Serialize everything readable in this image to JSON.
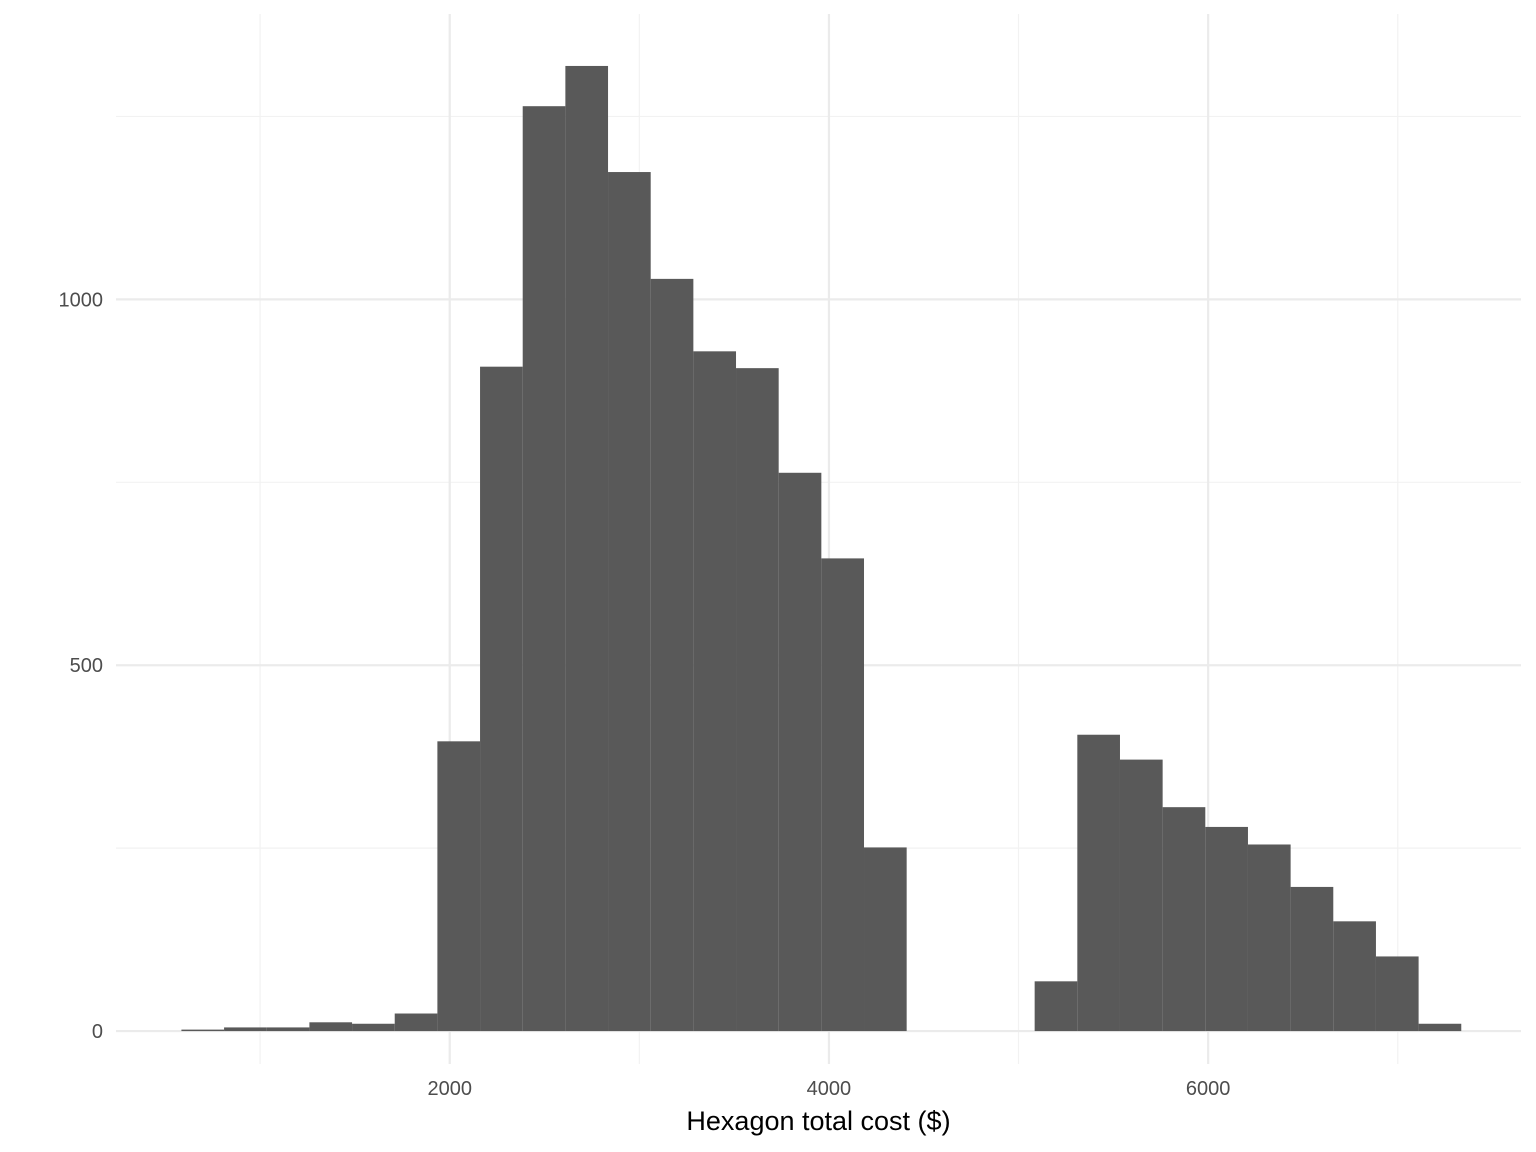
{
  "chart_data": {
    "type": "bar",
    "title": "",
    "xlabel": "Hexagon total cost ($)",
    "ylabel": "",
    "xlim": [
      240,
      7650
    ],
    "ylim": [
      -45,
      1390
    ],
    "x_ticks": [
      2000,
      4000,
      6000
    ],
    "x_minor_ticks": [
      1000,
      3000,
      5000,
      7000
    ],
    "y_ticks": [
      0,
      500,
      1000
    ],
    "y_minor_ticks": [
      250,
      750,
      1250
    ],
    "grid": true,
    "bar_color": "#595959",
    "bins": [
      {
        "x0": 585,
        "x1": 810,
        "count": 2
      },
      {
        "x0": 810,
        "x1": 1035,
        "count": 5
      },
      {
        "x0": 1035,
        "x1": 1260,
        "count": 5
      },
      {
        "x0": 1260,
        "x1": 1485,
        "count": 12
      },
      {
        "x0": 1485,
        "x1": 1710,
        "count": 10
      },
      {
        "x0": 1710,
        "x1": 1935,
        "count": 24
      },
      {
        "x0": 1935,
        "x1": 2160,
        "count": 396
      },
      {
        "x0": 2160,
        "x1": 2385,
        "count": 908
      },
      {
        "x0": 2385,
        "x1": 2610,
        "count": 1264
      },
      {
        "x0": 2610,
        "x1": 2835,
        "count": 1319
      },
      {
        "x0": 2835,
        "x1": 3060,
        "count": 1174
      },
      {
        "x0": 3060,
        "x1": 3285,
        "count": 1028
      },
      {
        "x0": 3285,
        "x1": 3510,
        "count": 929
      },
      {
        "x0": 3510,
        "x1": 3735,
        "count": 906
      },
      {
        "x0": 3735,
        "x1": 3960,
        "count": 763
      },
      {
        "x0": 3960,
        "x1": 4185,
        "count": 646
      },
      {
        "x0": 4185,
        "x1": 4410,
        "count": 251
      },
      {
        "x0": 5085,
        "x1": 5310,
        "count": 68
      },
      {
        "x0": 5310,
        "x1": 5535,
        "count": 405
      },
      {
        "x0": 5535,
        "x1": 5760,
        "count": 371
      },
      {
        "x0": 5760,
        "x1": 5985,
        "count": 306
      },
      {
        "x0": 5985,
        "x1": 6210,
        "count": 279
      },
      {
        "x0": 6210,
        "x1": 6435,
        "count": 255
      },
      {
        "x0": 6435,
        "x1": 6660,
        "count": 197
      },
      {
        "x0": 6660,
        "x1": 6885,
        "count": 150
      },
      {
        "x0": 6885,
        "x1": 7110,
        "count": 102
      },
      {
        "x0": 7110,
        "x1": 7335,
        "count": 10
      }
    ]
  }
}
